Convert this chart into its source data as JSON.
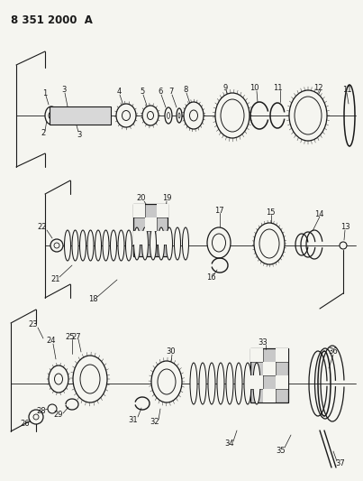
{
  "title": "8 351 2000  A",
  "bg_color": "#f5f5f0",
  "line_color": "#1a1a1a",
  "fig_width": 4.03,
  "fig_height": 5.33,
  "dpi": 100
}
